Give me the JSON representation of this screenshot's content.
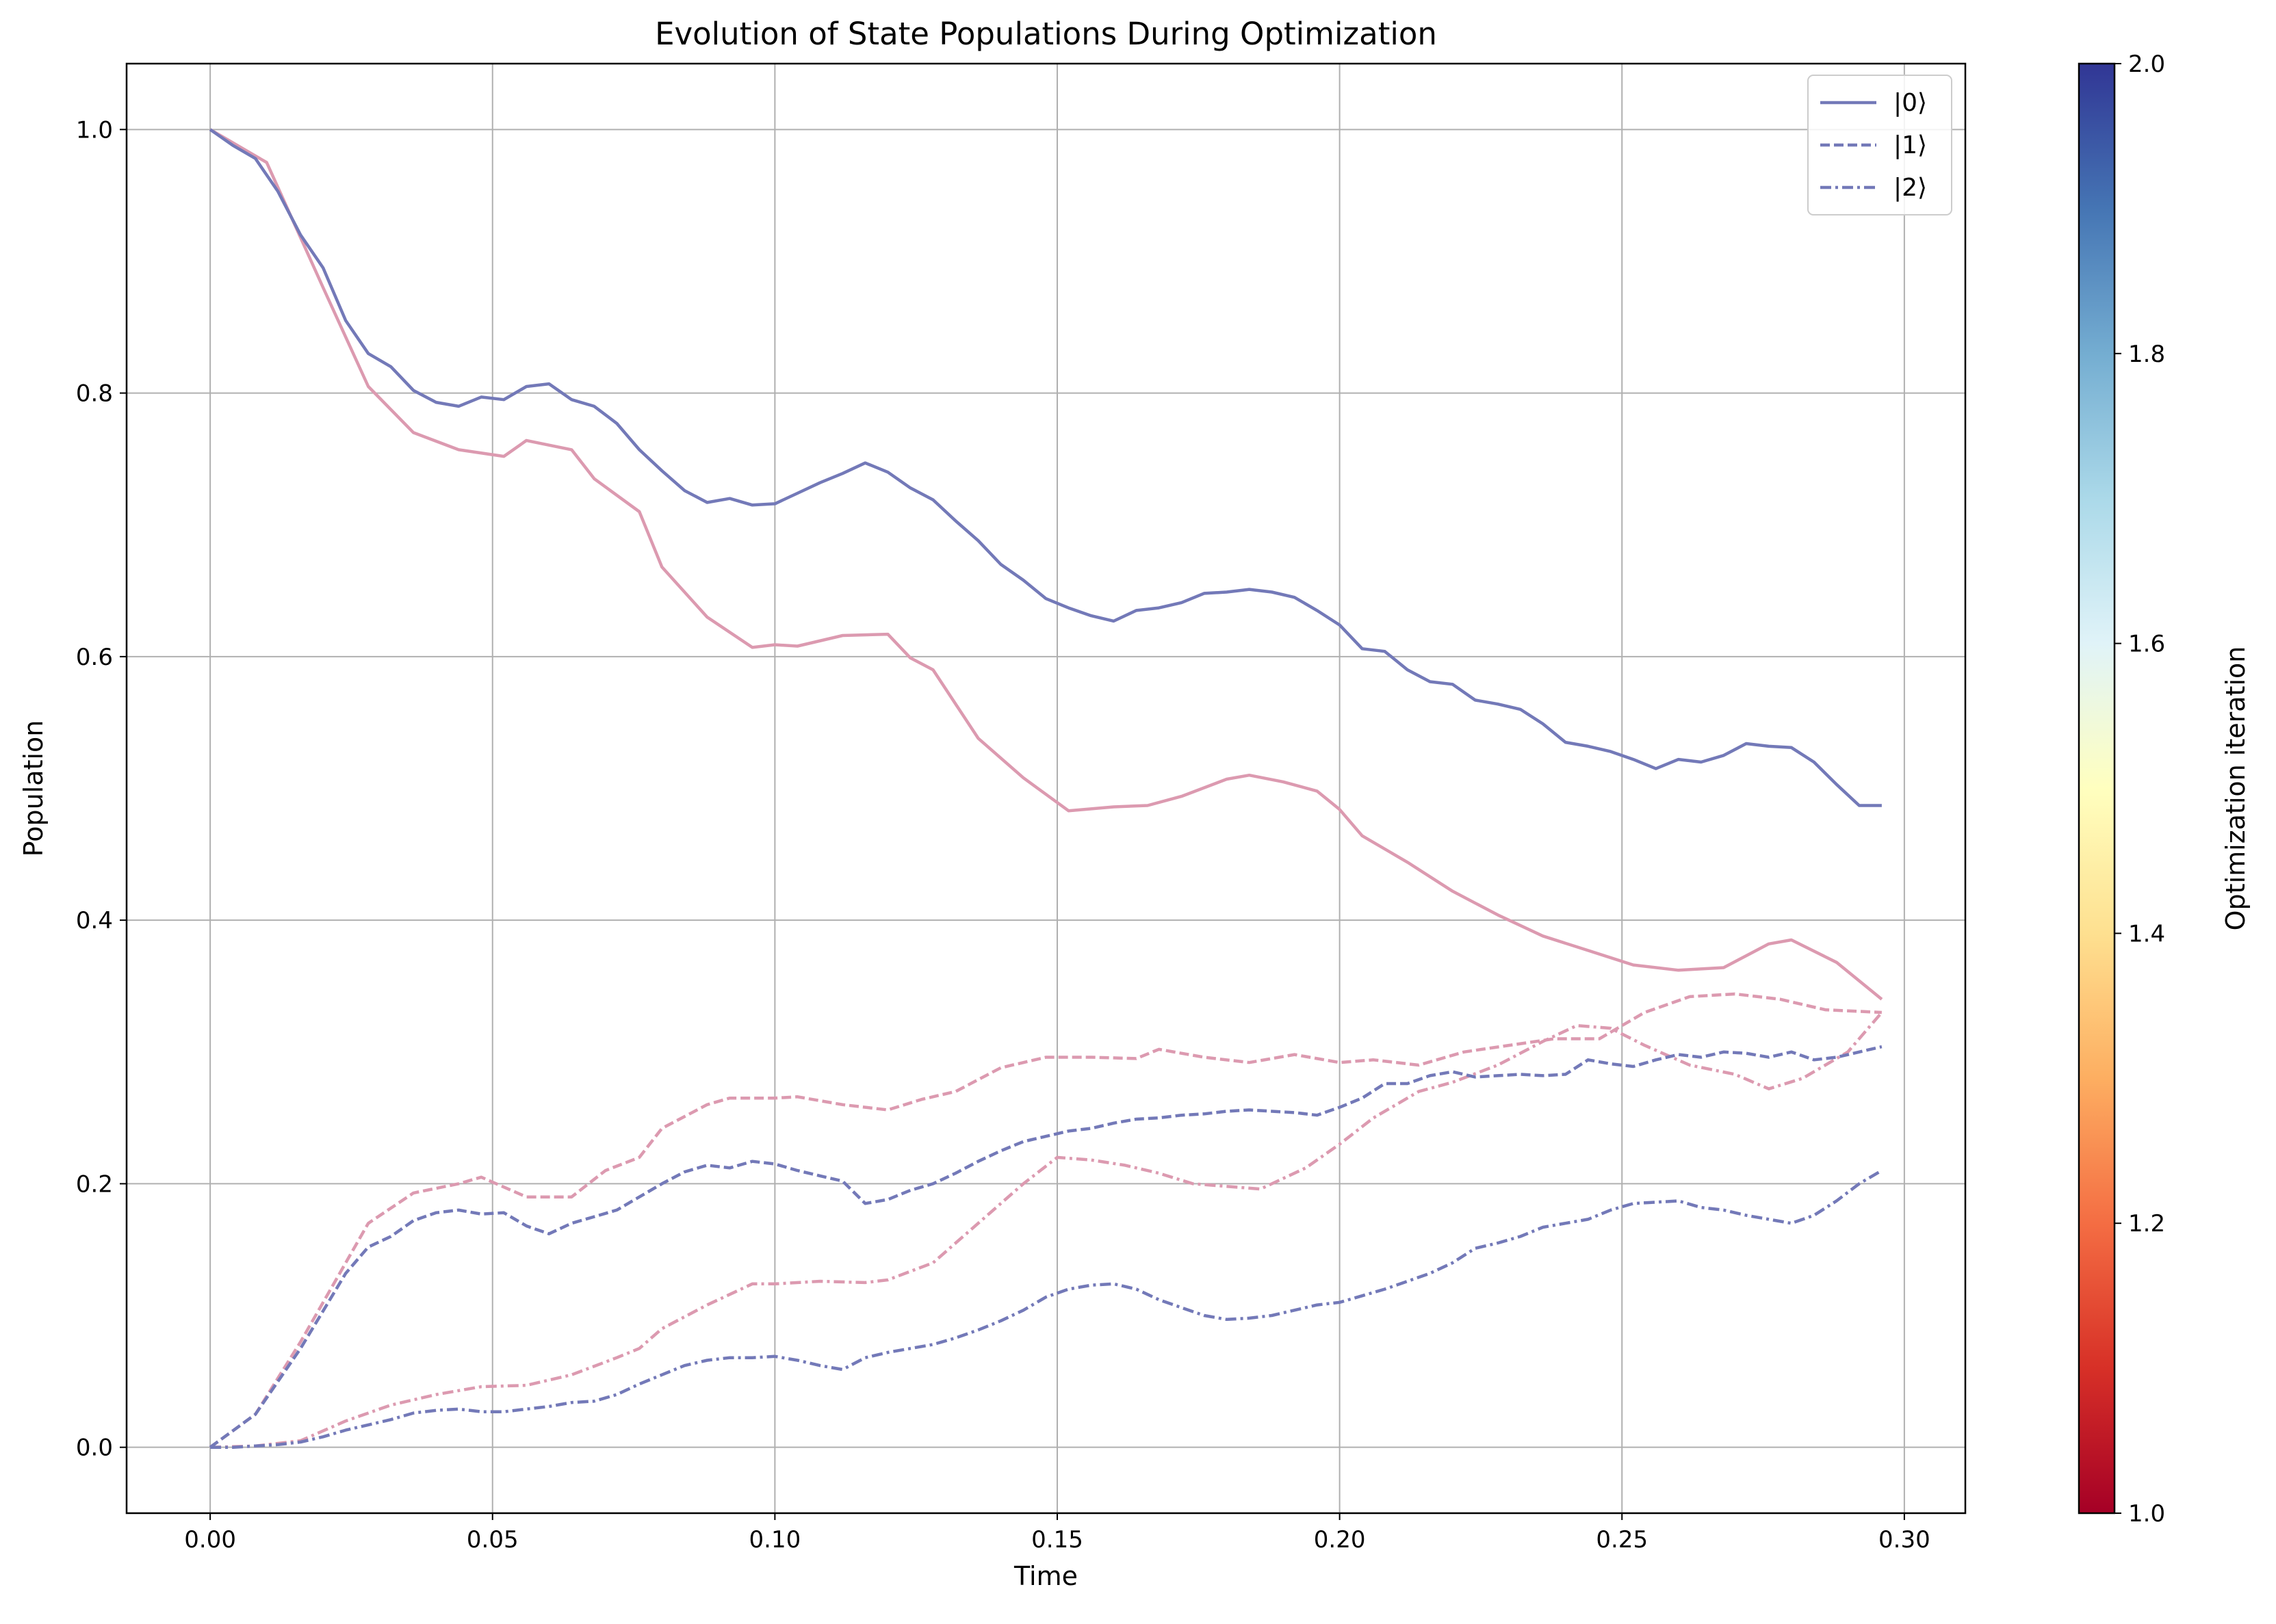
{
  "chart_data": {
    "type": "line",
    "title": "Evolution of State Populations During Optimization",
    "xlabel": "Time",
    "ylabel": "Population",
    "xlim": [
      -0.0148,
      0.3108
    ],
    "ylim": [
      -0.05,
      1.05
    ],
    "xticks": [
      0.0,
      0.05,
      0.1,
      0.15,
      0.2,
      0.25,
      0.3
    ],
    "xtick_labels": [
      "0.00",
      "0.05",
      "0.10",
      "0.15",
      "0.20",
      "0.25",
      "0.30"
    ],
    "yticks": [
      0.0,
      0.2,
      0.4,
      0.6,
      0.8,
      1.0
    ],
    "ytick_labels": [
      "0.0",
      "0.2",
      "0.4",
      "0.6",
      "0.8",
      "1.0"
    ],
    "grid": true,
    "legend_position": "top-right",
    "legend": [
      {
        "label": "|0⟩",
        "style": "solid"
      },
      {
        "label": "|1⟩",
        "style": "dashed"
      },
      {
        "label": "|2⟩",
        "style": "dashdot"
      }
    ],
    "colorbar": {
      "label": "Optimization iteration",
      "colormap": "RdYlBu",
      "range": [
        1.0,
        2.0
      ],
      "ticks": [
        1.0,
        1.2,
        1.4,
        1.6,
        1.8,
        2.0
      ],
      "tick_labels": [
        "1.0",
        "1.2",
        "1.4",
        "1.6",
        "1.8",
        "2.0"
      ],
      "stops": [
        "#a50026",
        "#d73027",
        "#f46d43",
        "#fdae61",
        "#fee090",
        "#ffffbf",
        "#e0f3f8",
        "#abd9e9",
        "#74add1",
        "#4575b4",
        "#313695"
      ]
    },
    "series": [
      {
        "iteration": 1,
        "state": "|0⟩",
        "style": "solid",
        "color": "#dc9ab0",
        "x": [
          0.0,
          0.01,
          0.02,
          0.028,
          0.036,
          0.044,
          0.052,
          0.056,
          0.064,
          0.068,
          0.076,
          0.08,
          0.088,
          0.096,
          0.1,
          0.104,
          0.112,
          0.12,
          0.124,
          0.128,
          0.136,
          0.144,
          0.152,
          0.16,
          0.166,
          0.172,
          0.18,
          0.184,
          0.19,
          0.196,
          0.2,
          0.204,
          0.212,
          0.22,
          0.228,
          0.236,
          0.244,
          0.252,
          0.26,
          0.268,
          0.276,
          0.28,
          0.288,
          0.296
        ],
        "y": [
          1.0,
          0.975,
          0.88,
          0.805,
          0.77,
          0.757,
          0.752,
          0.764,
          0.757,
          0.735,
          0.71,
          0.668,
          0.63,
          0.607,
          0.609,
          0.608,
          0.616,
          0.617,
          0.599,
          0.59,
          0.538,
          0.508,
          0.483,
          0.486,
          0.487,
          0.494,
          0.507,
          0.51,
          0.505,
          0.498,
          0.484,
          0.464,
          0.444,
          0.422,
          0.404,
          0.388,
          0.377,
          0.366,
          0.362,
          0.364,
          0.382,
          0.385,
          0.368,
          0.34
        ]
      },
      {
        "iteration": 1,
        "state": "|1⟩",
        "style": "dashed",
        "color": "#dc9ab0",
        "x": [
          0.0,
          0.008,
          0.016,
          0.024,
          0.028,
          0.036,
          0.044,
          0.048,
          0.056,
          0.064,
          0.07,
          0.076,
          0.08,
          0.088,
          0.092,
          0.1,
          0.104,
          0.112,
          0.12,
          0.126,
          0.132,
          0.14,
          0.148,
          0.156,
          0.164,
          0.168,
          0.176,
          0.184,
          0.192,
          0.2,
          0.206,
          0.214,
          0.222,
          0.23,
          0.238,
          0.246,
          0.254,
          0.262,
          0.27,
          0.278,
          0.286,
          0.296
        ],
        "y": [
          0.0,
          0.025,
          0.08,
          0.14,
          0.17,
          0.193,
          0.2,
          0.205,
          0.19,
          0.19,
          0.21,
          0.22,
          0.242,
          0.26,
          0.265,
          0.265,
          0.266,
          0.26,
          0.256,
          0.264,
          0.27,
          0.288,
          0.296,
          0.296,
          0.295,
          0.302,
          0.296,
          0.292,
          0.298,
          0.292,
          0.294,
          0.29,
          0.3,
          0.305,
          0.31,
          0.31,
          0.33,
          0.342,
          0.344,
          0.34,
          0.332,
          0.33
        ]
      },
      {
        "iteration": 1,
        "state": "|2⟩",
        "style": "dashdot",
        "color": "#dc9ab0",
        "x": [
          0.0,
          0.008,
          0.016,
          0.024,
          0.032,
          0.04,
          0.048,
          0.056,
          0.064,
          0.072,
          0.076,
          0.08,
          0.088,
          0.096,
          0.1,
          0.108,
          0.116,
          0.12,
          0.128,
          0.136,
          0.144,
          0.15,
          0.156,
          0.162,
          0.168,
          0.174,
          0.18,
          0.186,
          0.194,
          0.2,
          0.206,
          0.214,
          0.22,
          0.228,
          0.236,
          0.242,
          0.248,
          0.254,
          0.262,
          0.27,
          0.276,
          0.282,
          0.29,
          0.296
        ],
        "y": [
          0.0,
          0.001,
          0.005,
          0.02,
          0.032,
          0.04,
          0.046,
          0.047,
          0.055,
          0.068,
          0.075,
          0.09,
          0.108,
          0.124,
          0.124,
          0.126,
          0.125,
          0.127,
          0.14,
          0.17,
          0.2,
          0.22,
          0.218,
          0.214,
          0.208,
          0.2,
          0.198,
          0.196,
          0.212,
          0.23,
          0.25,
          0.27,
          0.277,
          0.29,
          0.308,
          0.32,
          0.318,
          0.305,
          0.29,
          0.283,
          0.272,
          0.28,
          0.3,
          0.33
        ]
      },
      {
        "iteration": 2,
        "state": "|0⟩",
        "style": "solid",
        "color": "#7379b8",
        "x": [
          0.0,
          0.004,
          0.008,
          0.012,
          0.016,
          0.02,
          0.024,
          0.028,
          0.032,
          0.036,
          0.04,
          0.044,
          0.048,
          0.052,
          0.056,
          0.06,
          0.064,
          0.068,
          0.072,
          0.076,
          0.08,
          0.084,
          0.088,
          0.092,
          0.096,
          0.1,
          0.104,
          0.108,
          0.112,
          0.116,
          0.12,
          0.124,
          0.128,
          0.132,
          0.136,
          0.14,
          0.144,
          0.148,
          0.152,
          0.156,
          0.16,
          0.164,
          0.168,
          0.172,
          0.176,
          0.18,
          0.184,
          0.188,
          0.192,
          0.196,
          0.2,
          0.204,
          0.208,
          0.212,
          0.216,
          0.22,
          0.224,
          0.228,
          0.232,
          0.236,
          0.24,
          0.244,
          0.248,
          0.252,
          0.256,
          0.26,
          0.264,
          0.268,
          0.272,
          0.276,
          0.28,
          0.284,
          0.288,
          0.292,
          0.296
        ],
        "y": [
          1.0,
          0.988,
          0.978,
          0.953,
          0.92,
          0.895,
          0.855,
          0.83,
          0.82,
          0.802,
          0.793,
          0.79,
          0.797,
          0.795,
          0.805,
          0.807,
          0.795,
          0.79,
          0.777,
          0.757,
          0.741,
          0.726,
          0.717,
          0.72,
          0.715,
          0.716,
          0.724,
          0.732,
          0.739,
          0.747,
          0.74,
          0.728,
          0.719,
          0.703,
          0.688,
          0.67,
          0.658,
          0.644,
          0.637,
          0.631,
          0.627,
          0.635,
          0.637,
          0.641,
          0.648,
          0.649,
          0.651,
          0.649,
          0.645,
          0.635,
          0.624,
          0.606,
          0.604,
          0.59,
          0.581,
          0.579,
          0.567,
          0.564,
          0.56,
          0.549,
          0.535,
          0.532,
          0.528,
          0.522,
          0.515,
          0.522,
          0.52,
          0.525,
          0.534,
          0.532,
          0.531,
          0.52,
          0.503,
          0.487,
          0.487
        ]
      },
      {
        "iteration": 2,
        "state": "|1⟩",
        "style": "dashed",
        "color": "#7379b8",
        "x": [
          0.0,
          0.008,
          0.016,
          0.024,
          0.028,
          0.032,
          0.036,
          0.04,
          0.044,
          0.048,
          0.052,
          0.056,
          0.06,
          0.064,
          0.068,
          0.072,
          0.076,
          0.08,
          0.084,
          0.088,
          0.092,
          0.096,
          0.1,
          0.104,
          0.108,
          0.112,
          0.116,
          0.12,
          0.124,
          0.128,
          0.132,
          0.136,
          0.14,
          0.144,
          0.148,
          0.152,
          0.156,
          0.16,
          0.164,
          0.168,
          0.172,
          0.176,
          0.18,
          0.184,
          0.188,
          0.192,
          0.196,
          0.2,
          0.204,
          0.208,
          0.212,
          0.216,
          0.22,
          0.224,
          0.228,
          0.232,
          0.236,
          0.24,
          0.244,
          0.248,
          0.252,
          0.256,
          0.26,
          0.264,
          0.268,
          0.272,
          0.276,
          0.28,
          0.284,
          0.288,
          0.292,
          0.296
        ],
        "y": [
          0.0,
          0.025,
          0.075,
          0.132,
          0.152,
          0.16,
          0.172,
          0.178,
          0.18,
          0.177,
          0.178,
          0.168,
          0.162,
          0.17,
          0.175,
          0.18,
          0.19,
          0.2,
          0.209,
          0.214,
          0.212,
          0.217,
          0.215,
          0.21,
          0.206,
          0.202,
          0.185,
          0.188,
          0.195,
          0.2,
          0.208,
          0.217,
          0.225,
          0.232,
          0.236,
          0.24,
          0.242,
          0.246,
          0.249,
          0.25,
          0.252,
          0.253,
          0.255,
          0.256,
          0.255,
          0.254,
          0.252,
          0.258,
          0.265,
          0.276,
          0.276,
          0.282,
          0.285,
          0.281,
          0.282,
          0.283,
          0.282,
          0.283,
          0.294,
          0.291,
          0.289,
          0.294,
          0.298,
          0.296,
          0.3,
          0.299,
          0.296,
          0.3,
          0.294,
          0.296,
          0.3,
          0.304
        ]
      },
      {
        "iteration": 2,
        "state": "|2⟩",
        "style": "dashdot",
        "color": "#7379b8",
        "x": [
          0.0,
          0.004,
          0.008,
          0.012,
          0.016,
          0.02,
          0.024,
          0.028,
          0.032,
          0.036,
          0.04,
          0.044,
          0.048,
          0.052,
          0.056,
          0.06,
          0.064,
          0.068,
          0.072,
          0.076,
          0.08,
          0.084,
          0.088,
          0.092,
          0.096,
          0.1,
          0.104,
          0.108,
          0.112,
          0.116,
          0.12,
          0.124,
          0.128,
          0.132,
          0.136,
          0.14,
          0.144,
          0.148,
          0.152,
          0.156,
          0.16,
          0.164,
          0.168,
          0.172,
          0.176,
          0.18,
          0.184,
          0.188,
          0.192,
          0.196,
          0.2,
          0.204,
          0.208,
          0.212,
          0.216,
          0.22,
          0.224,
          0.228,
          0.232,
          0.236,
          0.24,
          0.244,
          0.248,
          0.252,
          0.256,
          0.26,
          0.264,
          0.268,
          0.272,
          0.276,
          0.28,
          0.284,
          0.288,
          0.292,
          0.296
        ],
        "y": [
          0.0,
          0.0,
          0.001,
          0.002,
          0.004,
          0.008,
          0.013,
          0.017,
          0.021,
          0.026,
          0.028,
          0.029,
          0.027,
          0.027,
          0.029,
          0.031,
          0.034,
          0.035,
          0.04,
          0.048,
          0.055,
          0.062,
          0.066,
          0.068,
          0.068,
          0.069,
          0.066,
          0.062,
          0.059,
          0.068,
          0.072,
          0.075,
          0.078,
          0.083,
          0.089,
          0.096,
          0.104,
          0.114,
          0.12,
          0.123,
          0.124,
          0.12,
          0.112,
          0.106,
          0.1,
          0.097,
          0.098,
          0.1,
          0.104,
          0.108,
          0.11,
          0.115,
          0.12,
          0.126,
          0.132,
          0.14,
          0.151,
          0.155,
          0.16,
          0.167,
          0.17,
          0.173,
          0.18,
          0.185,
          0.186,
          0.187,
          0.182,
          0.18,
          0.176,
          0.173,
          0.17,
          0.176,
          0.187,
          0.2,
          0.21
        ]
      }
    ]
  }
}
